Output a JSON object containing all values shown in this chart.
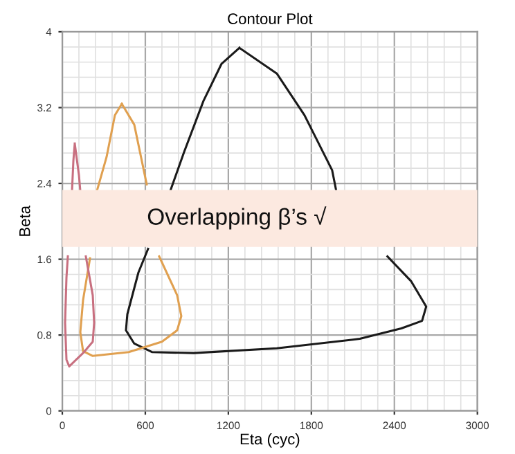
{
  "chart_data": {
    "type": "line",
    "title": "Contour Plot",
    "xlabel": "Eta (cyc)",
    "ylabel": "Beta",
    "xlim": [
      0,
      3000
    ],
    "ylim": [
      0,
      4
    ],
    "xticks": [
      0,
      600,
      1200,
      1800,
      2400,
      3000
    ],
    "yticks": [
      0,
      0.8,
      1.6,
      2.4,
      3.2,
      4
    ],
    "grid": true,
    "marker": "none",
    "line_style": "solid",
    "annotations": [
      "Overlapping β’s √"
    ],
    "bands": [
      {
        "axis": "y",
        "from": 1.73,
        "to": 2.33,
        "color": "#fce9e0"
      }
    ],
    "series": [
      {
        "color": "#1a1a1a",
        "x": [
          1280,
          1550,
          1750,
          1950,
          1980,
          null,
          2350,
          2520,
          2630,
          2600,
          2450,
          2150,
          1550,
          950,
          650,
          520,
          460,
          470,
          550,
          620,
          null,
          780,
          880,
          1020,
          1150,
          1280
        ],
        "values": [
          3.83,
          3.56,
          3.12,
          2.54,
          2.32,
          null,
          1.63,
          1.37,
          1.1,
          0.95,
          0.87,
          0.76,
          0.66,
          0.61,
          0.62,
          0.71,
          0.85,
          1.02,
          1.46,
          1.71,
          null,
          2.32,
          2.73,
          3.27,
          3.66,
          3.83
        ]
      },
      {
        "color": "#e0a050",
        "x": [
          430,
          520,
          610,
          null,
          700,
          830,
          860,
          830,
          720,
          480,
          220,
          150,
          130,
          150,
          200,
          null,
          250,
          320,
          380,
          430
        ],
        "values": [
          3.24,
          3.02,
          2.39,
          null,
          1.63,
          1.22,
          1.0,
          0.85,
          0.73,
          0.62,
          0.58,
          0.63,
          0.83,
          1.17,
          1.61,
          null,
          2.32,
          2.68,
          3.12,
          3.24
        ]
      },
      {
        "color": "#c87080",
        "x": [
          90,
          120,
          130,
          null,
          170,
          220,
          230,
          220,
          150,
          50,
          30,
          20,
          30,
          40,
          null,
          70,
          80,
          90
        ],
        "values": [
          2.82,
          2.49,
          2.32,
          null,
          1.63,
          1.22,
          0.93,
          0.73,
          0.61,
          0.47,
          0.54,
          0.93,
          1.41,
          1.63,
          null,
          2.32,
          2.64,
          2.82
        ]
      }
    ]
  }
}
